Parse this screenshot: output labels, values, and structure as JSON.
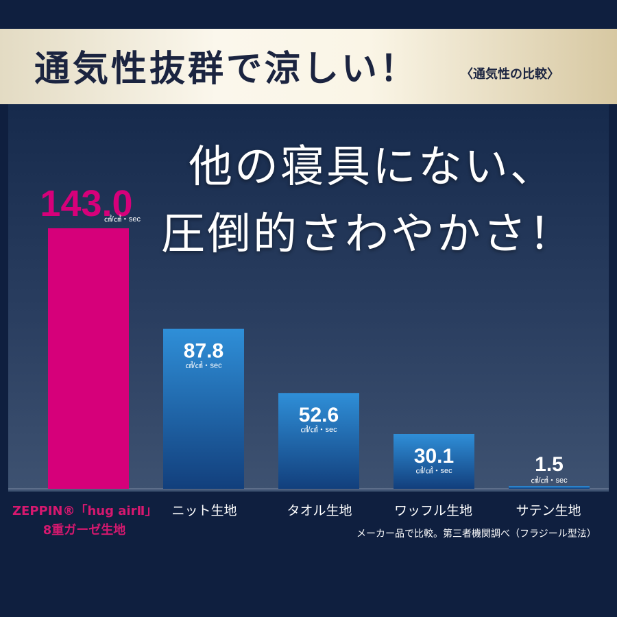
{
  "banner": {
    "title": "通気性抜群で涼しい！",
    "subtitle": "〈通気性の比較〉"
  },
  "headline": {
    "line1": "他の寝具にない、",
    "line2": "圧倒的さわやかさ！"
  },
  "footnote": "メーカー品で比較。第三者機関調べ（フラジール型法）",
  "highlight_label": {
    "line1": "ZEPPIN®「hug airⅡ」",
    "line2": "8重ガーゼ生地"
  },
  "colors": {
    "highlight": "#d6007a",
    "bar_top": "#2f8fd8",
    "bar_bottom": "#123f7c",
    "background": "#0f1f3f"
  },
  "chart_data": {
    "type": "bar",
    "categories": [
      "ZEPPIN®「hug airⅡ」8重ガーゼ生地",
      "ニット生地",
      "タオル生地",
      "ワッフル生地",
      "サテン生地"
    ],
    "values": [
      143.0,
      87.8,
      52.6,
      30.1,
      1.5
    ],
    "value_labels": [
      "143.0",
      "87.8",
      "52.6",
      "30.1",
      "1.5"
    ],
    "unit": "㎤/㎠・sec",
    "ylim": [
      0,
      143.0
    ],
    "grid": false,
    "highlight_index": 0
  }
}
